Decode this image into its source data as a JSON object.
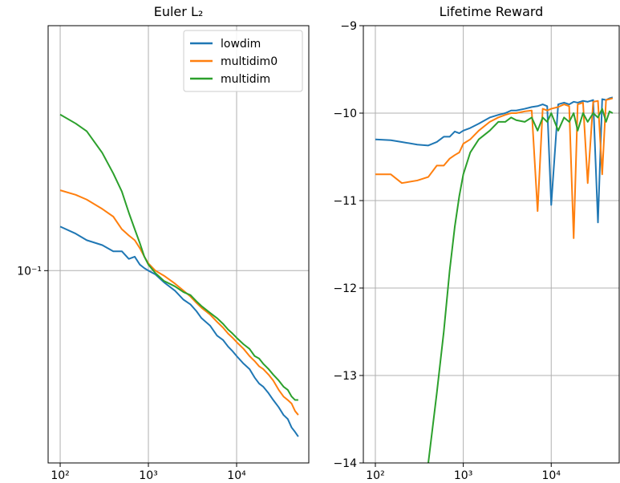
{
  "chart_data": [
    {
      "type": "line",
      "title": "Euler L₂",
      "x": [
        100,
        150,
        200,
        300,
        400,
        500,
        600,
        700,
        800,
        900,
        1000,
        1200,
        1500,
        2000,
        2500,
        3000,
        3500,
        4000,
        5000,
        6000,
        7000,
        8000,
        9000,
        10000,
        12000,
        14000,
        16000,
        18000,
        20000,
        23000,
        26000,
        30000,
        34000,
        38000,
        42000,
        46000,
        50000
      ],
      "series": [
        {
          "name": "lowdim",
          "color": "#1f77b4",
          "values": [
            0.143,
            0.135,
            0.128,
            0.123,
            0.117,
            0.117,
            0.11,
            0.112,
            0.105,
            0.102,
            0.1,
            0.097,
            0.091,
            0.085,
            0.079,
            0.076,
            0.072,
            0.068,
            0.064,
            0.059,
            0.057,
            0.054,
            0.052,
            0.05,
            0.047,
            0.045,
            0.042,
            0.04,
            0.039,
            0.037,
            0.035,
            0.033,
            0.031,
            0.03,
            0.028,
            0.027,
            0.026
          ]
        },
        {
          "name": "multidim0",
          "color": "#ff7f0e",
          "values": [
            0.192,
            0.185,
            0.178,
            0.165,
            0.155,
            0.14,
            0.133,
            0.128,
            0.12,
            0.112,
            0.106,
            0.1,
            0.096,
            0.09,
            0.085,
            0.081,
            0.077,
            0.074,
            0.07,
            0.066,
            0.063,
            0.06,
            0.058,
            0.056,
            0.053,
            0.05,
            0.048,
            0.046,
            0.045,
            0.043,
            0.041,
            0.038,
            0.036,
            0.035,
            0.034,
            0.032,
            0.031
          ]
        },
        {
          "name": "multidim",
          "color": "#2ca02c",
          "values": [
            0.355,
            0.33,
            0.31,
            0.26,
            0.22,
            0.19,
            0.16,
            0.14,
            0.125,
            0.112,
            0.105,
            0.098,
            0.092,
            0.088,
            0.084,
            0.082,
            0.078,
            0.075,
            0.071,
            0.068,
            0.065,
            0.062,
            0.06,
            0.058,
            0.055,
            0.053,
            0.05,
            0.049,
            0.047,
            0.045,
            0.043,
            0.041,
            0.039,
            0.038,
            0.036,
            0.035,
            0.035
          ]
        }
      ],
      "xscale": "log",
      "yscale": "log",
      "xlim": [
        73,
        65800
      ],
      "ylim": [
        0.021,
        0.73
      ],
      "xticks": [
        {
          "value": 100,
          "label": "10²"
        },
        {
          "value": 1000,
          "label": "10³"
        },
        {
          "value": 10000,
          "label": "10⁴"
        }
      ],
      "yticks": [
        {
          "value": 0.1,
          "label": "10⁻¹"
        }
      ],
      "grid": true,
      "legend": "upper right"
    },
    {
      "type": "line",
      "title": "Lifetime Reward",
      "x": [
        100,
        150,
        200,
        300,
        400,
        500,
        600,
        700,
        800,
        900,
        1000,
        1200,
        1500,
        2000,
        2500,
        3000,
        3500,
        4000,
        5000,
        6000,
        7000,
        8000,
        9000,
        10000,
        12000,
        14000,
        16000,
        18000,
        20000,
        23000,
        26000,
        30000,
        34000,
        38000,
        42000,
        46000,
        50000
      ],
      "series": [
        {
          "name": "lowdim",
          "color": "#1f77b4",
          "values": [
            -10.3,
            -10.31,
            -10.33,
            -10.36,
            -10.37,
            -10.33,
            -10.27,
            -10.27,
            -10.21,
            -10.23,
            -10.2,
            -10.17,
            -10.12,
            -10.05,
            -10.02,
            -10.0,
            -9.97,
            -9.97,
            -9.95,
            -9.93,
            -9.92,
            -9.9,
            -9.92,
            -11.05,
            -9.9,
            -9.88,
            -9.9,
            -9.87,
            -9.88,
            -9.86,
            -9.87,
            -9.85,
            -11.25,
            -9.84,
            -9.85,
            -9.83,
            -9.82
          ]
        },
        {
          "name": "multidim0",
          "color": "#ff7f0e",
          "values": [
            -10.7,
            -10.7,
            -10.8,
            -10.77,
            -10.73,
            -10.6,
            -10.6,
            -10.52,
            -10.48,
            -10.45,
            -10.35,
            -10.3,
            -10.2,
            -10.1,
            -10.05,
            -10.02,
            -10.0,
            -10.0,
            -9.98,
            -9.97,
            -11.12,
            -9.95,
            -9.97,
            -9.95,
            -9.93,
            -9.9,
            -9.92,
            -11.43,
            -9.9,
            -9.88,
            -10.8,
            -9.87,
            -9.86,
            -10.7,
            -9.85,
            -9.84,
            -9.83
          ]
        },
        {
          "name": "multidim",
          "color": "#2ca02c",
          "values": [
            null,
            null,
            null,
            null,
            -14.0,
            -13.2,
            -12.5,
            -11.8,
            -11.3,
            -10.95,
            -10.7,
            -10.45,
            -10.3,
            -10.2,
            -10.1,
            -10.1,
            -10.05,
            -10.08,
            -10.1,
            -10.05,
            -10.2,
            -10.05,
            -10.1,
            -10.0,
            -10.2,
            -10.05,
            -10.1,
            -10.0,
            -10.2,
            -10.0,
            -10.1,
            -10.0,
            -10.05,
            -9.95,
            -10.1,
            -9.98,
            -10.0
          ]
        }
      ],
      "xscale": "log",
      "yscale": "linear",
      "xlim": [
        73,
        59300
      ],
      "ylim": [
        -14,
        -9
      ],
      "xticks": [
        {
          "value": 100,
          "label": "10²"
        },
        {
          "value": 1000,
          "label": "10³"
        },
        {
          "value": 10000,
          "label": "10⁴"
        }
      ],
      "yticks": [
        {
          "value": -14,
          "label": "−14"
        },
        {
          "value": -13,
          "label": "−13"
        },
        {
          "value": -12,
          "label": "−12"
        },
        {
          "value": -11,
          "label": "−11"
        },
        {
          "value": -10,
          "label": "−10"
        },
        {
          "value": -9,
          "label": "−9"
        }
      ],
      "grid": true
    }
  ]
}
